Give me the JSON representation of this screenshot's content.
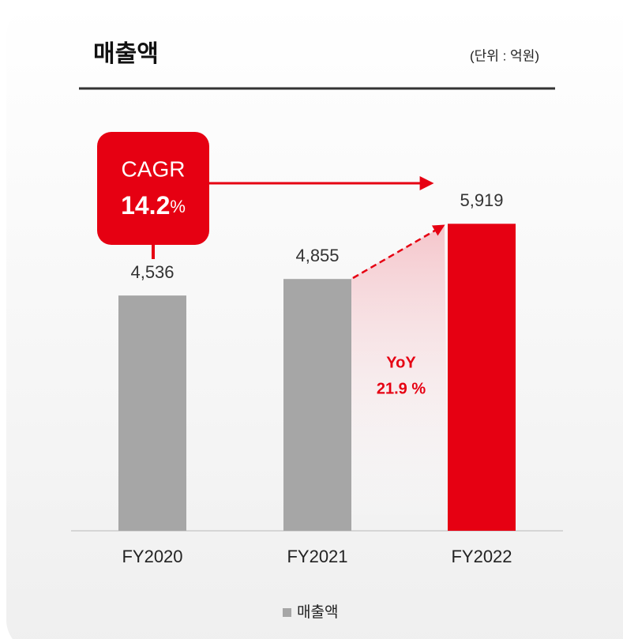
{
  "chart_data": {
    "type": "bar",
    "title": "매출액",
    "subtitle": "(단위 : 억원)",
    "categories": [
      "FY2020",
      "FY2021",
      "FY2022"
    ],
    "series": [
      {
        "name": "매출액",
        "color": "#a6a6a6",
        "values": [
          4536,
          4855,
          5919
        ],
        "value_labels": [
          "4,536",
          "4,855",
          "5,919"
        ],
        "colors": [
          "#a6a6a6",
          "#a6a6a6",
          "#e60012"
        ]
      }
    ],
    "ylim": [
      0,
      6000
    ],
    "annotations": {
      "cagr": {
        "label": "CAGR",
        "value": "14.2",
        "unit": "%"
      },
      "yoy": {
        "label": "YoY",
        "value": "21.9 %"
      }
    }
  }
}
